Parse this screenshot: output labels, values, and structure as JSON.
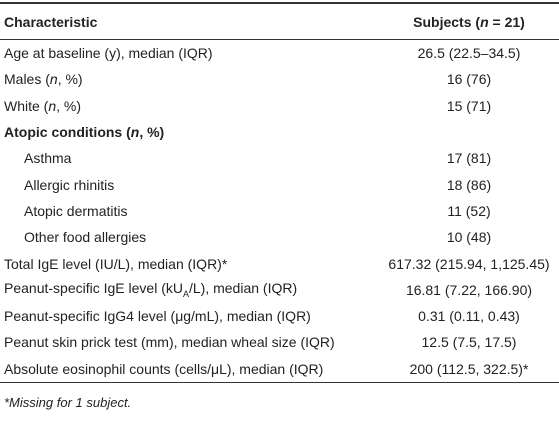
{
  "table": {
    "header": [
      [
        "Characteristic"
      ],
      [
        "Subjects (",
        "n",
        " = 21)"
      ]
    ],
    "rows": [
      [
        [
          "Age at baseline (y), median (IQR)"
        ],
        [
          "26.5 (22.5–34.5)"
        ]
      ],
      [
        [
          "Males (",
          "n",
          ", %)"
        ],
        [
          "16 (76)"
        ]
      ],
      [
        [
          "White (",
          "n",
          ", %)"
        ],
        [
          "15 (71)"
        ]
      ],
      [
        [
          "Atopic conditions (",
          "n",
          ", %)"
        ]
      ],
      [
        [
          "Asthma"
        ],
        [
          "17 (81)"
        ]
      ],
      [
        [
          "Allergic rhinitis"
        ],
        [
          "18 (86)"
        ]
      ],
      [
        [
          "Atopic dermatitis"
        ],
        [
          "11 (52)"
        ]
      ],
      [
        [
          "Other food allergies"
        ],
        [
          "10 (48)"
        ]
      ],
      [
        [
          "Total IgE level (IU/L), median (IQR)*"
        ],
        [
          "617.32 (215.94, 1,125.45)"
        ]
      ],
      [
        [
          "Peanut-specific IgE level (kU",
          "A",
          "/L), median (IQR)"
        ],
        [
          "16.81 (7.22, 166.90)"
        ]
      ],
      [
        [
          "Peanut-specific IgG4 level (μg/mL), median (IQR)"
        ],
        [
          "0.31 (0.11, 0.43)"
        ]
      ],
      [
        [
          "Peanut skin prick test (mm), median wheal size (IQR)"
        ],
        [
          "12.5 (7.5, 17.5)"
        ]
      ],
      [
        [
          "Absolute eosinophil counts (cells/μL), median (IQR)"
        ],
        [
          "200 (112.5, 322.5)*"
        ]
      ]
    ],
    "footnote": "*Missing for 1 subject."
  }
}
